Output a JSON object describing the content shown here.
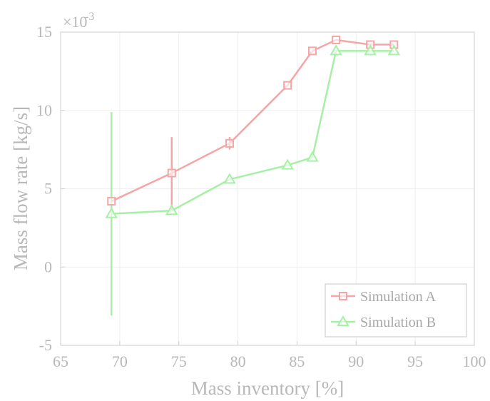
{
  "chart_data": {
    "type": "line",
    "xlabel": "Mass inventory [%]",
    "ylabel": "Mass flow rate [kg/s]",
    "y_exponent_base": "×10",
    "y_exponent_power": "-3",
    "xlim": [
      65,
      100
    ],
    "ylim": [
      -5,
      15
    ],
    "xticks": [
      65,
      70,
      75,
      80,
      85,
      90,
      95,
      100
    ],
    "yticks": [
      -5,
      0,
      5,
      10,
      15
    ],
    "grid": true,
    "legend_position": "bottom-right",
    "series": [
      {
        "name": "Simulation A",
        "color": "#f4a6a6",
        "marker": "square",
        "x": [
          69.3,
          74.4,
          79.3,
          84.2,
          86.3,
          88.3,
          91.2,
          93.2
        ],
        "y": [
          4.2,
          6.0,
          7.9,
          11.6,
          13.8,
          14.5,
          14.2,
          14.2
        ],
        "error_low": [
          -0.8,
          3.6,
          7.5,
          null,
          null,
          null,
          null,
          null
        ],
        "error_high": [
          9.2,
          8.3,
          8.3,
          null,
          null,
          null,
          null,
          null
        ]
      },
      {
        "name": "Simulation B",
        "color": "#a6f0a6",
        "marker": "triangle",
        "x": [
          69.3,
          74.4,
          79.3,
          84.2,
          86.3,
          88.3,
          91.2,
          93.2
        ],
        "y": [
          3.4,
          3.6,
          5.6,
          6.5,
          7.0,
          13.8,
          13.8,
          13.8
        ],
        "error_low": [
          -3.1,
          null,
          null,
          null,
          null,
          null,
          null,
          null
        ],
        "error_high": [
          9.9,
          null,
          null,
          null,
          null,
          null,
          null,
          null
        ]
      }
    ]
  }
}
